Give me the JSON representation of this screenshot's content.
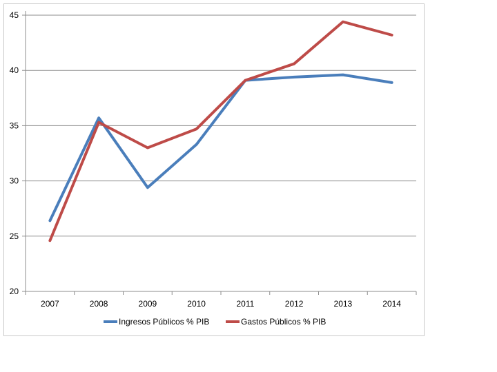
{
  "chart_data": {
    "type": "line",
    "categories": [
      "2007",
      "2008",
      "2009",
      "2010",
      "2011",
      "2012",
      "2013",
      "2014"
    ],
    "ylim": [
      20,
      45
    ],
    "yticks": [
      20,
      25,
      30,
      35,
      40,
      45
    ],
    "grid": "horizontal",
    "legend": "bottom",
    "series": [
      {
        "name": "Ingresos Públicos % PIB",
        "color": "#4a7ebb",
        "values": [
          26.4,
          35.7,
          29.4,
          33.3,
          39.1,
          39.4,
          39.6,
          38.9
        ]
      },
      {
        "name": "Gastos Públicos % PIB",
        "color": "#be4b48",
        "values": [
          24.6,
          35.3,
          33.0,
          34.7,
          39.1,
          40.6,
          44.4,
          43.2
        ]
      }
    ]
  }
}
